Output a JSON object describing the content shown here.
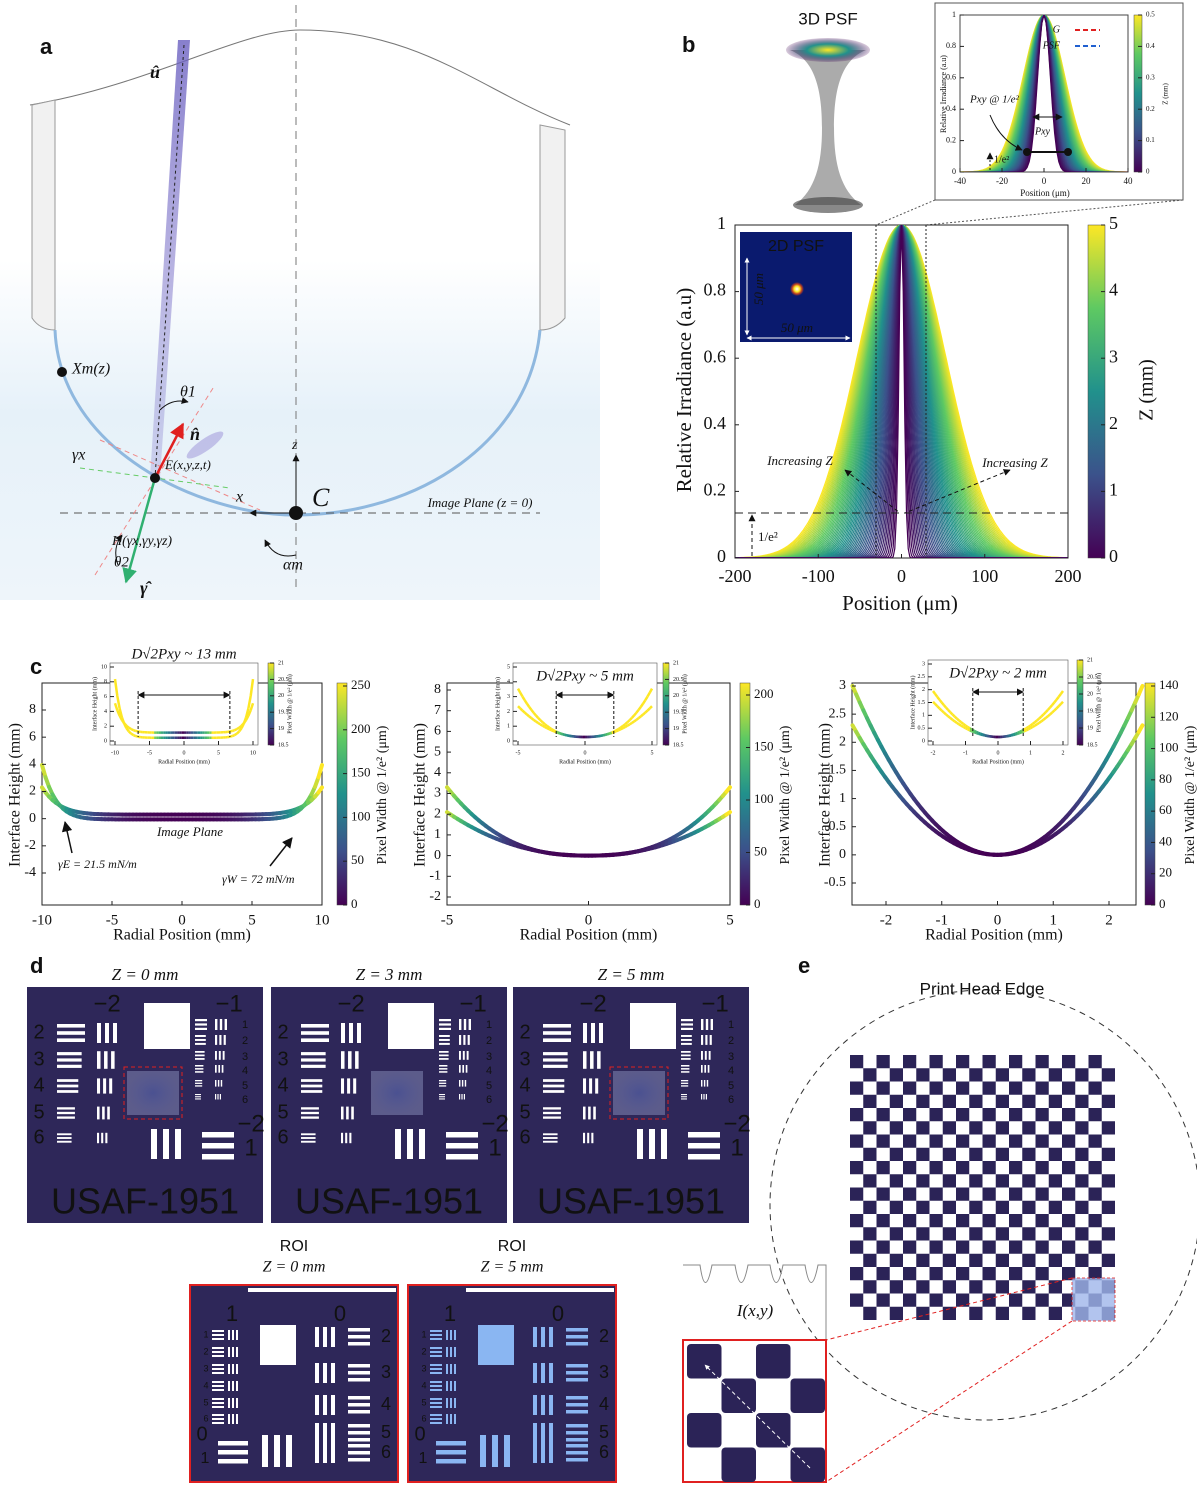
{
  "panels": {
    "a": {
      "label": "a",
      "annotations": {
        "u": "û",
        "xm": "Xm(z)",
        "theta1": "θ1",
        "n": "n̂",
        "gx": "γx",
        "e": "E(x,y,z,t)",
        "z": "z",
        "x": "x",
        "c": "C",
        "plane": "Image Plane (z = 0)",
        "h": "H(γx,γy,γz)",
        "theta2": "θ2",
        "alpha": "αm",
        "gamma": "γ̂"
      }
    },
    "b": {
      "label": "b",
      "psf3d": "3D PSF",
      "psf2d": "2D PSF",
      "scale_v": "50 μm",
      "scale_h": "50 μm",
      "xlabel": "Position (μm)",
      "ylabel": "Relative Irradiance (a.u)",
      "xticks": [
        -200,
        -100,
        0,
        100,
        200
      ],
      "yticks": [
        0,
        0.2,
        0.4,
        0.6,
        0.8,
        1
      ],
      "colorbar": {
        "label": "Z (mm)",
        "ticks": [
          0,
          1,
          2,
          3,
          4,
          5
        ]
      },
      "increasing": "Increasing Z",
      "increasing2": "Increasing Z",
      "e2": "1/e²",
      "inset": {
        "xlabel": "Position (μm)",
        "ylabel": "Relative Irradiance (a.u)",
        "xticks": [
          -40,
          -20,
          0,
          20,
          40
        ],
        "yticks": [
          0,
          0.2,
          0.4,
          0.6,
          0.8,
          1
        ],
        "colorbar": {
          "label": "Z (mm)",
          "ticks": [
            0,
            0.1,
            0.2,
            0.3,
            0.4,
            0.5
          ]
        },
        "legend": [
          "G",
          "PSF"
        ],
        "pxy_at": "Pxy @ 1/e²",
        "pxy": "Pxy",
        "e2": "1/e²"
      }
    },
    "c": {
      "label": "c",
      "ylabel": "Interface Height (mm)",
      "xlabel": "Radial Position (mm)",
      "cbar_label": "Pixel Width @ 1/e² (μm)",
      "plots": [
        {
          "xticks": [
            -10,
            -5,
            0,
            5,
            10
          ],
          "yticks": [
            -4,
            -2,
            0,
            2,
            4,
            6,
            8
          ],
          "cticks": [
            0,
            50,
            100,
            150,
            200,
            250
          ],
          "d": "D√2Pxy ~ 13 mm",
          "inset": {
            "xticks": [
              -10,
              -5,
              0,
              5,
              10
            ],
            "yticks": [
              0,
              2,
              4,
              6,
              8,
              10
            ],
            "cticks": [
              18.5,
              19,
              19.5,
              20,
              20.5,
              21
            ]
          }
        },
        {
          "xticks": [
            -5,
            0,
            5
          ],
          "yticks": [
            -2,
            -1,
            0,
            1,
            2,
            3,
            4,
            5,
            6,
            7,
            8
          ],
          "cticks": [
            0,
            50,
            100,
            150,
            200
          ],
          "d": "D√2Pxy ~ 5 mm",
          "inset": {
            "xticks": [
              -5,
              0,
              5
            ],
            "yticks": [
              0,
              1,
              2,
              3,
              4,
              5
            ],
            "cticks": [
              18.5,
              19,
              19.5,
              20,
              20.5,
              21
            ]
          }
        },
        {
          "xticks": [
            -2,
            -1,
            0,
            1,
            2
          ],
          "yticks": [
            -0.5,
            0,
            0.5,
            1,
            1.5,
            2,
            2.5,
            3
          ],
          "cticks": [
            0,
            20,
            40,
            60,
            80,
            100,
            120,
            140
          ],
          "d": "D√2Pxy ~ 2 mm",
          "inset": {
            "xticks": [
              -2,
              -1,
              0,
              1,
              2
            ],
            "yticks": [
              0,
              0.5,
              1,
              1.5,
              2,
              2.5,
              3
            ],
            "cticks": [
              18.5,
              19,
              19.5,
              20,
              20.5,
              21
            ]
          }
        }
      ],
      "image_plane": "Image Plane",
      "gamma_e": "γE = 21.5 mN/m",
      "gamma_w": "γW = 72 mN/m"
    },
    "d": {
      "label": "d",
      "images": [
        {
          "title": "Z = 0 mm"
        },
        {
          "title": "Z = 3 mm"
        },
        {
          "title": "Z = 5 mm"
        }
      ],
      "target": {
        "groups": [
          "−2",
          "−1",
          "−2",
          "1"
        ],
        "rows": [
          "2",
          "3",
          "4",
          "5",
          "6"
        ],
        "sub": [
          "1",
          "2",
          "3",
          "4",
          "5",
          "6"
        ],
        "name": "USAF-1951"
      },
      "roi": [
        {
          "heading": "ROI",
          "title": "Z = 0 mm"
        },
        {
          "heading": "ROI",
          "title": "Z = 5 mm"
        }
      ],
      "roi_target": {
        "groups": [
          "1",
          "0"
        ],
        "rows": [
          "2",
          "3",
          "4",
          "5",
          "6"
        ],
        "sub": [
          "1",
          "2",
          "3",
          "4",
          "5",
          "6"
        ],
        "left": [
          "0",
          "1"
        ]
      }
    },
    "e": {
      "label": "e",
      "title": "Print Head Edge",
      "profile": "I(x,y)"
    }
  }
}
